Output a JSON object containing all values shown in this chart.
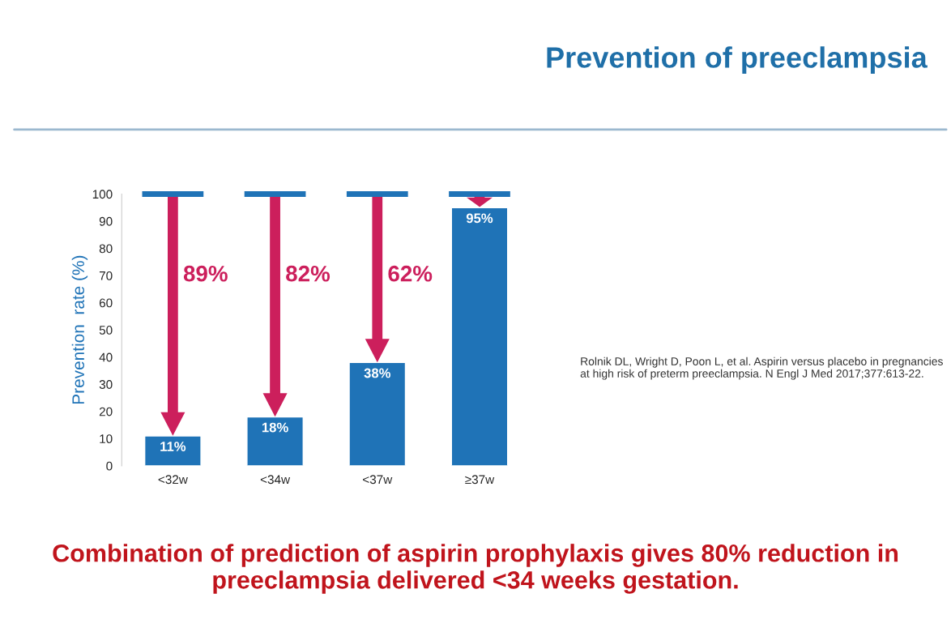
{
  "chart_data": {
    "type": "bar",
    "title": "Prevention of preeclampsia",
    "ylabel": "Prevention  rate (%)",
    "categories": [
      "<32w",
      "<34w",
      "<37w",
      "≥37w"
    ],
    "values": [
      11,
      18,
      38,
      95
    ],
    "value_labels": [
      "11%",
      "18%",
      "38%",
      "95%"
    ],
    "color": "#1f73b7",
    "ylim": [
      0,
      100
    ],
    "yticks": [
      0,
      10,
      20,
      30,
      40,
      50,
      60,
      70,
      80,
      90,
      100
    ],
    "grid": false,
    "legend": false,
    "annotations": [
      "89%",
      "82%",
      "62%",
      "Rolnik DL, Wright D, Poon L, et al. Aspirin versus placebo in pregnancies at high risk of preterm preeclampsia. N Engl J Med 2017;377:613-22.",
      "Combination of prediction of aspirin prophylaxis gives 80% reduction in preeclampsia delivered <34 weeks gestation."
    ]
  }
}
